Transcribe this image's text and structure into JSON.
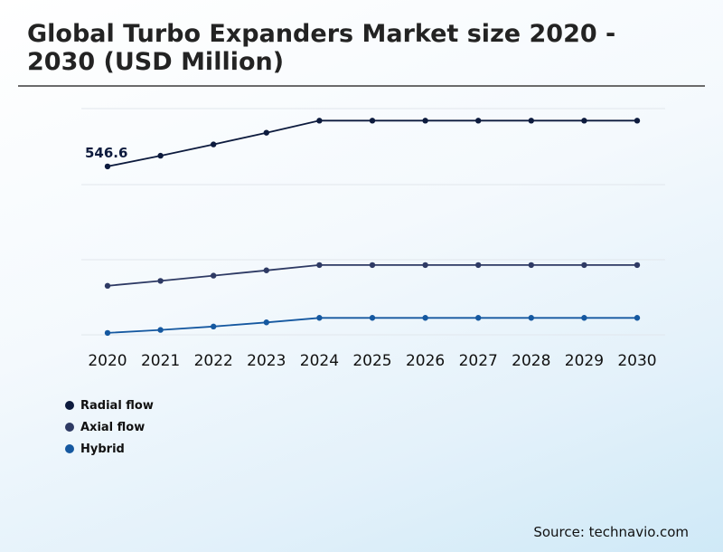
{
  "title": "Global Turbo Expanders Market size 2020 - 2030 (USD Million)",
  "source": "Source: technavio.com",
  "chart_data": {
    "type": "line",
    "categories": [
      "2020",
      "2021",
      "2022",
      "2023",
      "2024",
      "2025",
      "2026",
      "2027",
      "2028",
      "2029",
      "2030"
    ],
    "series": [
      {
        "name": "Radial flow",
        "color": "#0d1b3e",
        "values": [
          546.6,
          575,
          605,
          636,
          668,
          668,
          668,
          668,
          668,
          668,
          668
        ]
      },
      {
        "name": "Axial flow",
        "color": "#2e3a64",
        "values": [
          230,
          243,
          257,
          271,
          285,
          285,
          285,
          285,
          285,
          285,
          285
        ]
      },
      {
        "name": "Hybrid",
        "color": "#1558a0",
        "values": [
          105,
          113,
          122,
          133,
          145,
          145,
          145,
          145,
          145,
          145,
          145
        ]
      }
    ],
    "data_labels": [
      {
        "series": 0,
        "index": 0,
        "text": "546.6"
      }
    ],
    "ylim": [
      100,
      700
    ],
    "grid": true,
    "legend_position": "bottom-left"
  }
}
